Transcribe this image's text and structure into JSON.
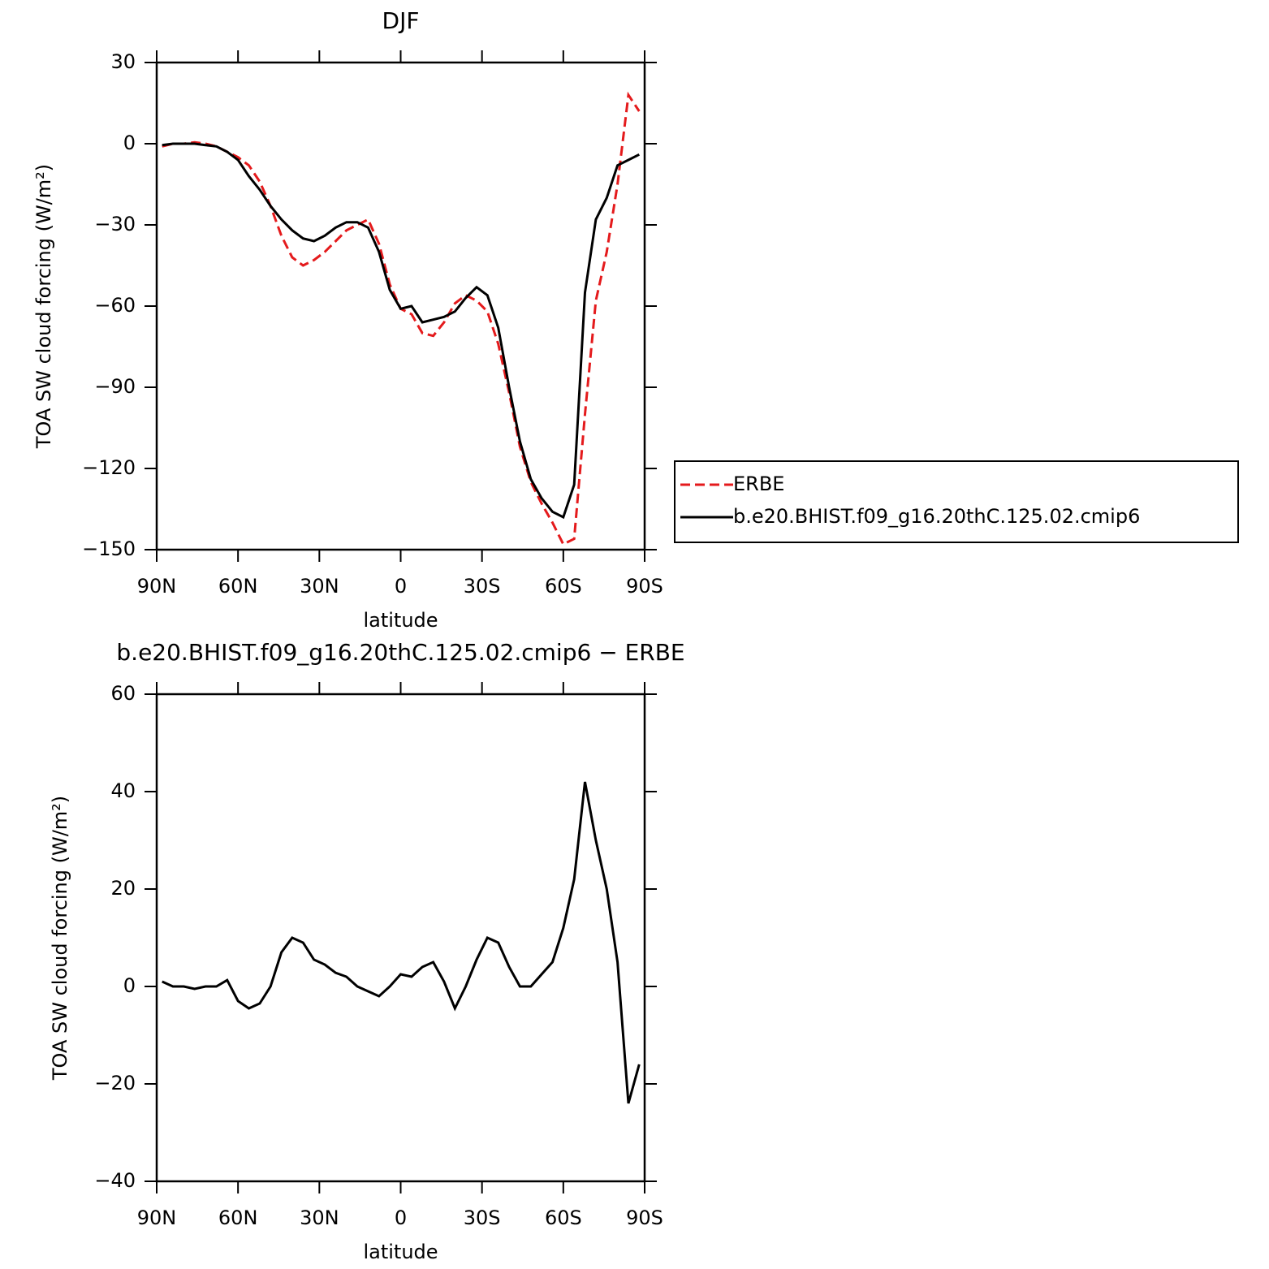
{
  "chart_data": [
    {
      "type": "line",
      "title": "DJF",
      "xlabel": "latitude",
      "ylabel": "TOA SW cloud forcing (W/m²)",
      "x": [
        88,
        84,
        80,
        76,
        72,
        68,
        64,
        60,
        56,
        52,
        48,
        44,
        40,
        36,
        32,
        28,
        24,
        20,
        16,
        12,
        8,
        4,
        0,
        -4,
        -8,
        -12,
        -16,
        -20,
        -24,
        -28,
        -32,
        -36,
        -40,
        -44,
        -48,
        -52,
        -56,
        -60,
        -64,
        -68,
        -72,
        -76,
        -80,
        -84,
        -88
      ],
      "xlim": [
        90,
        -90
      ],
      "xticks": [
        {
          "value": 90,
          "label": "90N"
        },
        {
          "value": 60,
          "label": "60N"
        },
        {
          "value": 30,
          "label": "30N"
        },
        0,
        {
          "value": -30,
          "label": "30S"
        },
        {
          "value": -60,
          "label": "60S"
        },
        {
          "value": -90,
          "label": "90S"
        }
      ],
      "ylim": [
        -150,
        30
      ],
      "yticks": [
        30,
        0,
        {
          "value": -30,
          "label": "−30"
        },
        {
          "value": -60,
          "label": "−60"
        },
        {
          "value": -90,
          "label": "−90"
        },
        {
          "value": -120,
          "label": "−120"
        },
        {
          "value": -150,
          "label": "−150"
        }
      ],
      "legend": "right",
      "series": [
        {
          "name": "ERBE",
          "color": "#e41a1c",
          "style": "dashed",
          "values": [
            -1,
            0,
            0,
            0.5,
            0,
            -1,
            -3,
            -5,
            -8,
            -14,
            -23,
            -34,
            -42,
            -45,
            -43,
            -40,
            -36,
            -32,
            -30,
            -28,
            -37,
            -52,
            -61,
            -63,
            -70,
            -71,
            -66,
            -59,
            -56,
            -58,
            -62,
            -74,
            -92,
            -112,
            -125,
            -133,
            -140,
            -148,
            -146,
            -100,
            -58,
            -40,
            -15,
            18,
            12
          ]
        },
        {
          "name": "b.e20.BHIST.f09_g16.20thC.125.02.cmip6",
          "color": "#000000",
          "style": "solid",
          "values": [
            -0.5,
            0,
            0,
            0,
            -0.5,
            -1,
            -3,
            -6,
            -12,
            -17,
            -23,
            -28,
            -32,
            -35,
            -36,
            -34,
            -31,
            -29,
            -29,
            -31,
            -40,
            -54,
            -61,
            -60,
            -66,
            -65,
            -64,
            -62,
            -57,
            -53,
            -56,
            -68,
            -90,
            -110,
            -124,
            -131,
            -136,
            -138,
            -126,
            -55,
            -28,
            -20,
            -8,
            -6,
            -4
          ]
        }
      ]
    },
    {
      "type": "line",
      "title": "b.e20.BHIST.f09_g16.20thC.125.02.cmip6 − ERBE",
      "xlabel": "latitude",
      "ylabel": "TOA SW cloud forcing (W/m²)",
      "x": [
        88,
        84,
        80,
        76,
        72,
        68,
        64,
        60,
        56,
        52,
        48,
        44,
        40,
        36,
        32,
        28,
        24,
        20,
        16,
        12,
        8,
        4,
        0,
        -4,
        -8,
        -12,
        -16,
        -20,
        -24,
        -28,
        -32,
        -36,
        -40,
        -44,
        -48,
        -52,
        -56,
        -60,
        -64,
        -68,
        -72,
        -76,
        -80,
        -84,
        -88
      ],
      "xlim": [
        90,
        -90
      ],
      "xticks": [
        {
          "value": 90,
          "label": "90N"
        },
        {
          "value": 60,
          "label": "60N"
        },
        {
          "value": 30,
          "label": "30N"
        },
        0,
        {
          "value": -30,
          "label": "30S"
        },
        {
          "value": -60,
          "label": "60S"
        },
        {
          "value": -90,
          "label": "90S"
        }
      ],
      "ylim": [
        -40,
        60
      ],
      "yticks": [
        60,
        40,
        20,
        0,
        {
          "value": -20,
          "label": "−20"
        },
        {
          "value": -40,
          "label": "−40"
        }
      ],
      "color": "#000000",
      "values": [
        1,
        0,
        0,
        -0.5,
        0,
        0,
        1.3,
        -3,
        -4.5,
        -3.5,
        0,
        7,
        10,
        9,
        5.5,
        4.5,
        2.8,
        2,
        0,
        -1,
        -2,
        0,
        2.5,
        2,
        4,
        5,
        1,
        -4.5,
        0,
        5.5,
        10,
        9,
        4,
        0,
        0,
        2.5,
        5,
        12,
        22,
        42,
        30,
        20,
        5,
        -24,
        -16
      ]
    }
  ]
}
